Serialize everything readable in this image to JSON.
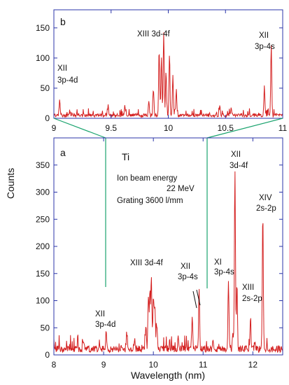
{
  "chart_data": [
    {
      "panel": "b",
      "type": "line",
      "xlim": [
        9,
        11
      ],
      "ylim": [
        0,
        180
      ],
      "xticks": [
        9,
        9.5,
        10,
        10.5,
        11
      ],
      "xtick_labels": [
        "9",
        "9.5",
        "10",
        "10.5",
        "11"
      ],
      "yticks": [
        0,
        50,
        100,
        150
      ],
      "panel_label": "b",
      "line_color": "#d42020",
      "axis_color": "#2b35a8",
      "peaks": [
        {
          "x": 9.05,
          "y": 25
        },
        {
          "x": 9.47,
          "y": 12
        },
        {
          "x": 9.62,
          "y": 15
        },
        {
          "x": 9.83,
          "y": 22
        },
        {
          "x": 9.87,
          "y": 45
        },
        {
          "x": 9.92,
          "y": 110
        },
        {
          "x": 9.94,
          "y": 95
        },
        {
          "x": 9.96,
          "y": 138
        },
        {
          "x": 9.98,
          "y": 75
        },
        {
          "x": 10.01,
          "y": 100
        },
        {
          "x": 10.04,
          "y": 60
        },
        {
          "x": 10.07,
          "y": 42
        },
        {
          "x": 10.45,
          "y": 15
        },
        {
          "x": 10.55,
          "y": 12
        },
        {
          "x": 10.84,
          "y": 45
        },
        {
          "x": 10.9,
          "y": 117
        }
      ],
      "annotations": [
        {
          "lines": [
            "XIII  3d-4f"
          ]
        },
        {
          "lines": [
            "XII",
            "3p-4d"
          ]
        },
        {
          "lines": [
            "XII",
            "3p-4s"
          ]
        }
      ]
    },
    {
      "panel": "a",
      "type": "line",
      "xlim": [
        8,
        12.6
      ],
      "ylim": [
        0,
        400
      ],
      "xticks": [
        8,
        9,
        10,
        11,
        12
      ],
      "yticks": [
        0,
        50,
        100,
        150,
        200,
        250,
        300,
        350
      ],
      "xlabel": "Wavelength (nm)",
      "ylabel": "Counts",
      "panel_label": "a",
      "element": "Ti",
      "info_lines": [
        "Ion beam energy",
        "22 MeV",
        "Grating 3600 l/mm"
      ],
      "line_color": "#d42020",
      "axis_color": "#2b35a8",
      "zoom_color": "#1aa36e",
      "peaks": [
        {
          "x": 8.6,
          "y": 15
        },
        {
          "x": 9.05,
          "y": 30
        },
        {
          "x": 9.47,
          "y": 25
        },
        {
          "x": 9.62,
          "y": 20
        },
        {
          "x": 9.85,
          "y": 40
        },
        {
          "x": 9.9,
          "y": 100
        },
        {
          "x": 9.93,
          "y": 110
        },
        {
          "x": 9.96,
          "y": 138
        },
        {
          "x": 10.0,
          "y": 95
        },
        {
          "x": 10.03,
          "y": 80
        },
        {
          "x": 10.07,
          "y": 40
        },
        {
          "x": 10.5,
          "y": 20
        },
        {
          "x": 10.78,
          "y": 60
        },
        {
          "x": 10.92,
          "y": 115
        },
        {
          "x": 11.2,
          "y": 20
        },
        {
          "x": 11.51,
          "y": 128
        },
        {
          "x": 11.6,
          "y": 30
        },
        {
          "x": 11.64,
          "y": 335
        },
        {
          "x": 11.68,
          "y": 120
        },
        {
          "x": 11.95,
          "y": 50
        },
        {
          "x": 12.04,
          "y": 15
        },
        {
          "x": 12.2,
          "y": 255
        }
      ],
      "annotations": [
        {
          "lines": [
            "XII",
            "3d-4f"
          ]
        },
        {
          "lines": [
            "XIV",
            "2s-2p"
          ]
        },
        {
          "lines": [
            "XIII   3d-4f"
          ]
        },
        {
          "lines": [
            "XII",
            "3p-4s"
          ]
        },
        {
          "lines": [
            "XI",
            "3p-4s"
          ]
        },
        {
          "lines": [
            "XIII",
            "2s-2p"
          ]
        },
        {
          "lines": [
            "XII",
            "3p-4d"
          ]
        }
      ]
    }
  ]
}
